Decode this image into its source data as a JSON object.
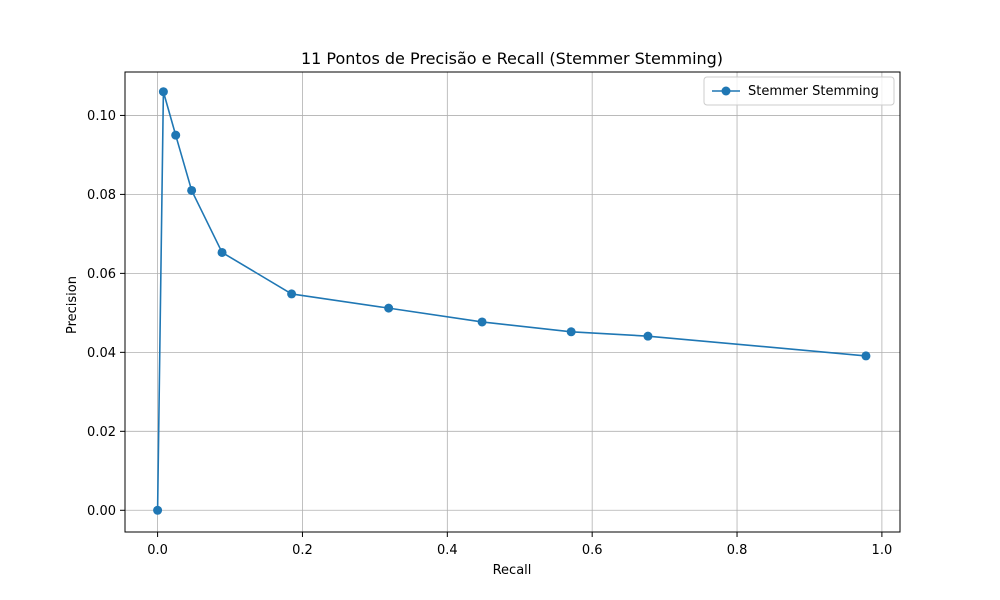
{
  "chart_data": {
    "type": "line",
    "title": "11 Pontos de Precisão e Recall (Stemmer Stemming)",
    "xlabel": "Recall",
    "ylabel": "Precision",
    "xlim": [
      -0.045,
      1.025
    ],
    "ylim": [
      -0.0055,
      0.111
    ],
    "xticks": [
      0.0,
      0.2,
      0.4,
      0.6,
      0.8,
      1.0
    ],
    "xtick_labels": [
      "0.0",
      "0.2",
      "0.4",
      "0.6",
      "0.8",
      "1.0"
    ],
    "yticks": [
      0.0,
      0.02,
      0.04,
      0.06,
      0.08,
      0.1
    ],
    "ytick_labels": [
      "0.00",
      "0.02",
      "0.04",
      "0.06",
      "0.08",
      "0.10"
    ],
    "grid": true,
    "legend_position": "top-right",
    "series": [
      {
        "name": "Stemmer Stemming",
        "color": "#1f77b4",
        "marker": "circle",
        "x": [
          0.0,
          0.008,
          0.025,
          0.047,
          0.089,
          0.185,
          0.319,
          0.448,
          0.571,
          0.677,
          0.978
        ],
        "y": [
          0.0,
          0.106,
          0.095,
          0.081,
          0.0653,
          0.0548,
          0.0512,
          0.0477,
          0.0452,
          0.0441,
          0.0391
        ]
      }
    ]
  }
}
